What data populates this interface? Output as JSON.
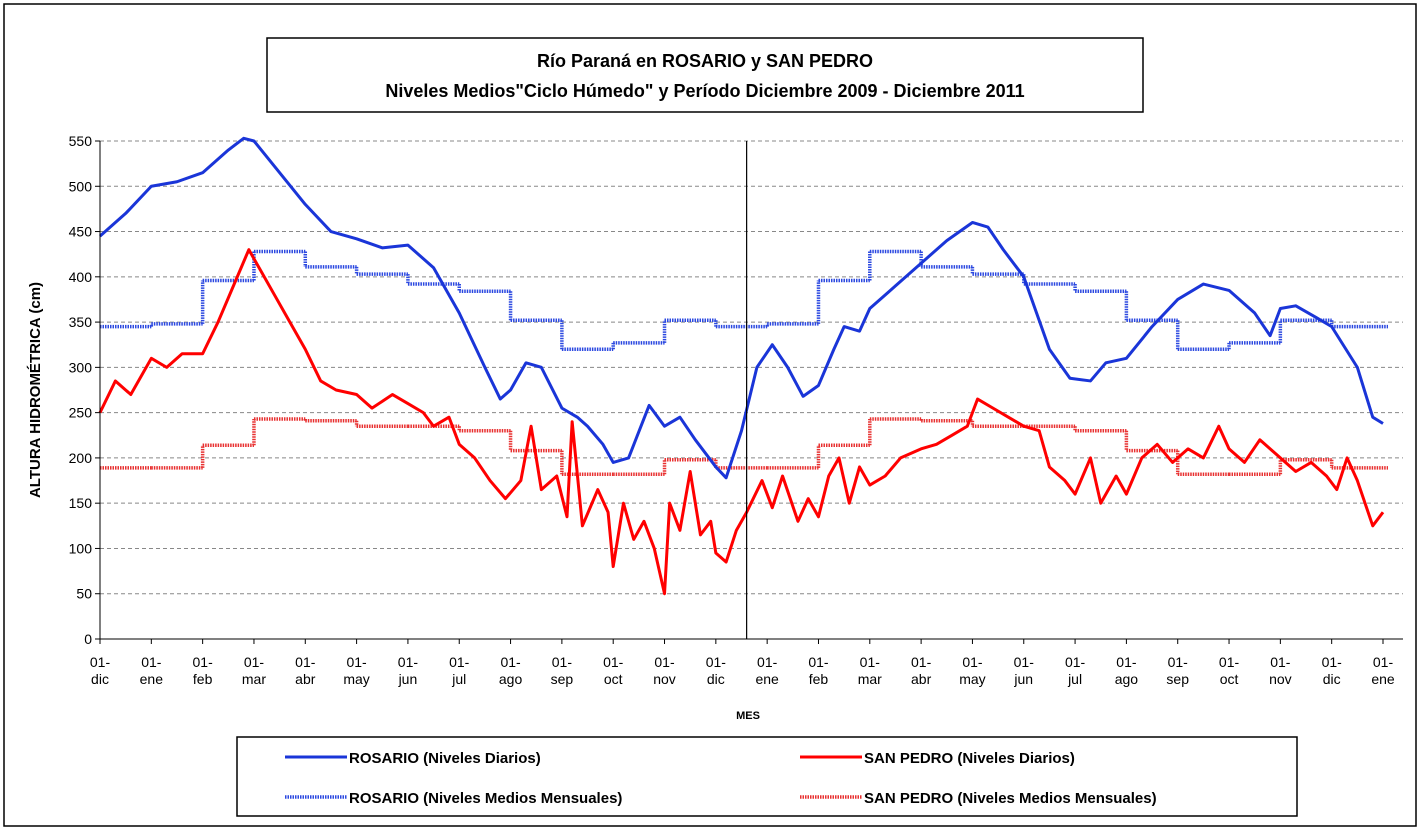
{
  "chart_data": {
    "type": "line",
    "title": [
      "Río Paraná en ROSARIO y SAN PEDRO",
      "Niveles Medios\"Ciclo Húmedo\" y Período Diciembre 2009 - Diciembre 2011"
    ],
    "y_label": "ALTURA HIDROMÉTRICA (cm)",
    "x_label": "MES",
    "xlim": [
      0,
      25
    ],
    "xticks": [
      {
        "value": 0,
        "label": "01-\ndic"
      },
      {
        "value": 1,
        "label": "01-\nene"
      },
      {
        "value": 2,
        "label": "01-\nfeb"
      },
      {
        "value": 3,
        "label": "01-\nmar"
      },
      {
        "value": 4,
        "label": "01-\nabr"
      },
      {
        "value": 5,
        "label": "01-\nmay"
      },
      {
        "value": 6,
        "label": "01-\njun"
      },
      {
        "value": 7,
        "label": "01-\njul"
      },
      {
        "value": 8,
        "label": "01-\nago"
      },
      {
        "value": 9,
        "label": "01-\nsep"
      },
      {
        "value": 10,
        "label": "01-\noct"
      },
      {
        "value": 11,
        "label": "01-\nnov"
      },
      {
        "value": 12,
        "label": "01-\ndic"
      },
      {
        "value": 13,
        "label": "01-\nene"
      },
      {
        "value": 14,
        "label": "01-\nfeb"
      },
      {
        "value": 15,
        "label": "01-\nmar"
      },
      {
        "value": 16,
        "label": "01-\nabr"
      },
      {
        "value": 17,
        "label": "01-\nmay"
      },
      {
        "value": 18,
        "label": "01-\njun"
      },
      {
        "value": 19,
        "label": "01-\njul"
      },
      {
        "value": 20,
        "label": "01-\nago"
      },
      {
        "value": 21,
        "label": "01-\nsep"
      },
      {
        "value": 22,
        "label": "01-\noct"
      },
      {
        "value": 23,
        "label": "01-\nnov"
      },
      {
        "value": 24,
        "label": "01-\ndic"
      },
      {
        "value": 25,
        "label": "01-\nene"
      }
    ],
    "ylim": [
      0,
      550
    ],
    "yticks": [
      0,
      50,
      100,
      150,
      200,
      250,
      300,
      350,
      400,
      450,
      500,
      550
    ],
    "grid": true,
    "reference_line_x": 12.6,
    "legend": "bottom",
    "series": [
      {
        "name": "ROSARIO (Niveles Diarios)",
        "color": "#1a35d8",
        "line_style": "solid",
        "step": false,
        "x": [
          0,
          0.5,
          1,
          1.5,
          2,
          2.5,
          2.8,
          3,
          3.5,
          4,
          4.5,
          5,
          5.5,
          6,
          6.5,
          7,
          7.5,
          7.8,
          8,
          8.3,
          8.6,
          9,
          9.3,
          9.5,
          9.8,
          10,
          10.3,
          10.7,
          11,
          11.3,
          11.6,
          12,
          12.2,
          12.5,
          12.8,
          13.1,
          13.4,
          13.7,
          14,
          14.3,
          14.5,
          14.8,
          15,
          15.5,
          16,
          16.5,
          17,
          17.3,
          17.6,
          18,
          18.5,
          18.9,
          19.3,
          19.6,
          20,
          20.5,
          21,
          21.5,
          22,
          22.5,
          22.8,
          23,
          23.3,
          23.7,
          24,
          24.5,
          24.8,
          25
        ],
        "values": [
          445,
          470,
          500,
          505,
          515,
          540,
          553,
          550,
          515,
          480,
          450,
          442,
          432,
          435,
          410,
          360,
          300,
          265,
          275,
          305,
          300,
          255,
          245,
          235,
          215,
          195,
          200,
          258,
          235,
          245,
          220,
          190,
          178,
          230,
          300,
          325,
          300,
          268,
          280,
          320,
          345,
          340,
          365,
          390,
          415,
          440,
          460,
          455,
          430,
          400,
          320,
          288,
          285,
          305,
          310,
          345,
          375,
          392,
          385,
          360,
          335,
          365,
          368,
          355,
          345,
          300,
          245,
          238
        ]
      },
      {
        "name": "SAN PEDRO (Niveles Diarios)",
        "color": "#ff0000",
        "line_style": "solid",
        "step": false,
        "x": [
          0,
          0.3,
          0.6,
          1,
          1.3,
          1.6,
          2,
          2.3,
          2.6,
          2.9,
          3.1,
          3.4,
          3.7,
          4,
          4.3,
          4.6,
          5,
          5.3,
          5.7,
          6,
          6.3,
          6.5,
          6.8,
          7,
          7.3,
          7.6,
          7.9,
          8.2,
          8.4,
          8.6,
          8.9,
          9.1,
          9.2,
          9.4,
          9.7,
          9.9,
          10,
          10.2,
          10.4,
          10.6,
          10.8,
          11,
          11.1,
          11.3,
          11.5,
          11.7,
          11.9,
          12,
          12.2,
          12.4,
          12.6,
          12.9,
          13.1,
          13.3,
          13.6,
          13.8,
          14,
          14.2,
          14.4,
          14.6,
          14.8,
          15,
          15.3,
          15.6,
          16,
          16.3,
          16.6,
          16.9,
          17.1,
          17.4,
          17.7,
          18,
          18.3,
          18.5,
          18.8,
          19,
          19.3,
          19.5,
          19.8,
          20,
          20.3,
          20.6,
          20.9,
          21.2,
          21.5,
          21.8,
          22,
          22.3,
          22.6,
          23,
          23.3,
          23.6,
          23.9,
          24.1,
          24.3,
          24.5,
          24.8,
          25
        ],
        "values": [
          250,
          285,
          270,
          310,
          300,
          315,
          315,
          350,
          390,
          430,
          410,
          380,
          350,
          320,
          285,
          275,
          270,
          255,
          270,
          260,
          250,
          235,
          245,
          215,
          200,
          175,
          155,
          175,
          235,
          165,
          180,
          135,
          240,
          125,
          165,
          140,
          80,
          150,
          110,
          130,
          100,
          50,
          150,
          120,
          185,
          115,
          130,
          95,
          85,
          120,
          140,
          175,
          145,
          180,
          130,
          155,
          135,
          180,
          200,
          150,
          190,
          170,
          180,
          200,
          210,
          215,
          225,
          235,
          265,
          255,
          245,
          235,
          230,
          190,
          175,
          160,
          200,
          150,
          180,
          160,
          200,
          215,
          195,
          210,
          200,
          235,
          210,
          195,
          220,
          200,
          185,
          195,
          180,
          165,
          200,
          175,
          125,
          140
        ]
      },
      {
        "name": "ROSARIO (Niveles Medios Mensuales)",
        "color": "#2b48e0",
        "line_style": "dotted",
        "step": true,
        "x": [
          0,
          1,
          2,
          3,
          4,
          5,
          6,
          7,
          8,
          9,
          10,
          11,
          12,
          13,
          14,
          15,
          16,
          17,
          18,
          19,
          20,
          21,
          22,
          23,
          24
        ],
        "values": [
          345,
          348,
          396,
          428,
          411,
          403,
          392,
          384,
          352,
          320,
          327,
          352,
          345,
          348,
          396,
          428,
          411,
          403,
          392,
          384,
          352,
          320,
          327,
          352,
          345
        ]
      },
      {
        "name": "SAN PEDRO (Niveles Medios Mensuales)",
        "color": "#e83030",
        "line_style": "dotted",
        "step": true,
        "x": [
          0,
          1,
          2,
          3,
          4,
          5,
          6,
          7,
          8,
          9,
          10,
          11,
          12,
          13,
          14,
          15,
          16,
          17,
          18,
          19,
          20,
          21,
          22,
          23,
          24
        ],
        "values": [
          189,
          189,
          214,
          243,
          241,
          235,
          235,
          230,
          208,
          182,
          182,
          198,
          189,
          189,
          214,
          243,
          241,
          235,
          235,
          230,
          208,
          182,
          182,
          198,
          189
        ]
      }
    ]
  }
}
